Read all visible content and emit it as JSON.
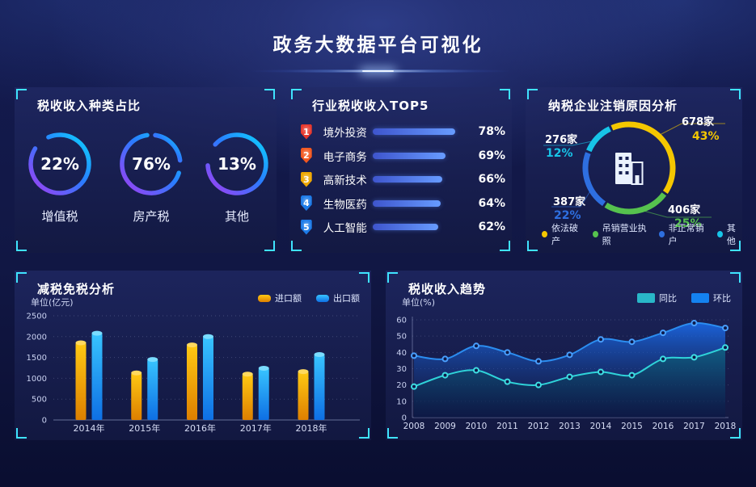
{
  "header": {
    "title": "政务大数据平台可视化"
  },
  "panels": {
    "tax_types": {
      "title": "税收收入种类占比"
    },
    "industry_top5": {
      "title": "行业税收收入TOP5"
    },
    "deregistration": {
      "title": "纳税企业注销原因分析"
    },
    "tax_reduction": {
      "title": "减税免税分析",
      "unit": "单位(亿元)"
    },
    "revenue_trend": {
      "title": "税收收入趋势",
      "unit": "单位(%)"
    }
  },
  "colors": {
    "accent_cyan": "#3fe3ff",
    "gauge_gradient": [
      "#a43cf2",
      "#2a7cff",
      "#0bd7ff"
    ],
    "top5_bar": [
      "#3e55cd",
      "#679bff"
    ],
    "gold": "#f0b400",
    "blue": "#1482f0",
    "teal": "#29b7c8"
  },
  "chart_data": [
    {
      "id": "tax_types",
      "type": "pie",
      "variant": "gauge-rings",
      "title": "税收收入种类占比",
      "items": [
        {
          "label": "增值税",
          "value": 22,
          "value_label": "22%"
        },
        {
          "label": "房产税",
          "value": 76,
          "value_label": "76%"
        },
        {
          "label": "其他",
          "value": 13,
          "value_label": "13%"
        }
      ]
    },
    {
      "id": "industry_top5",
      "type": "bar",
      "orientation": "horizontal",
      "title": "行业税收收入TOP5",
      "categories": [
        "境外投资",
        "电子商务",
        "高新技术",
        "生物医药",
        "人工智能"
      ],
      "values": [
        78,
        69,
        66,
        64,
        62
      ],
      "value_labels": [
        "78%",
        "69%",
        "66%",
        "64%",
        "62%"
      ],
      "ranks": [
        "1",
        "2",
        "3",
        "4",
        "5"
      ],
      "rank_badge_colors": [
        "#e8382d",
        "#f2571f",
        "#efa800",
        "#1d7be8",
        "#1d7be8"
      ],
      "xlim": [
        0,
        100
      ]
    },
    {
      "id": "deregistration",
      "type": "pie",
      "donut": true,
      "title": "纳税企业注销原因分析",
      "slices": [
        {
          "label": "依法破产",
          "count": "678家",
          "pct": "43%",
          "value": 43,
          "color": "#f4c700"
        },
        {
          "label": "吊销营业执照",
          "count": "406家",
          "pct": "25%",
          "value": 25,
          "color": "#56c24e"
        },
        {
          "label": "非正常销户",
          "count": "387家",
          "pct": "22%",
          "value": 22,
          "color": "#2e6fe0"
        },
        {
          "label": "其他",
          "count": "276家",
          "pct": "12%",
          "value": 12,
          "color": "#17c4e8"
        }
      ],
      "legend_position": "bottom",
      "center_icon": "building-icon"
    },
    {
      "id": "tax_reduction",
      "type": "bar",
      "title": "减税免税分析",
      "ylabel": "单位(亿元)",
      "categories": [
        "2014年",
        "2015年",
        "2016年",
        "2017年",
        "2018年"
      ],
      "series": [
        {
          "name": "进口额",
          "color_top": "#ffc913",
          "color_bottom": "#dd7f00",
          "cap": "#ffd95e",
          "values": [
            1850,
            1130,
            1800,
            1100,
            1160
          ]
        },
        {
          "name": "出口额",
          "color_top": "#38c4ff",
          "color_bottom": "#0e6fe4",
          "cap": "#7adcff",
          "values": [
            2080,
            1450,
            2000,
            1240,
            1570
          ]
        }
      ],
      "ylim": [
        0,
        2500
      ],
      "yticks": [
        2500,
        2000,
        1500,
        1000,
        500,
        0
      ],
      "grid": true,
      "legend_position": "top-right"
    },
    {
      "id": "revenue_trend",
      "type": "area",
      "title": "税收收入趋势",
      "ylabel": "单位(%)",
      "x": [
        "2008",
        "2009",
        "2010",
        "2011",
        "2012",
        "2013",
        "2014",
        "2015",
        "2016",
        "2017",
        "2018"
      ],
      "series": [
        {
          "name": "环比",
          "color": "#2b8df0",
          "swatch": "#1482f0",
          "values": [
            38,
            36,
            44,
            40,
            34.5,
            38.5,
            48,
            46.5,
            52,
            58,
            55
          ]
        },
        {
          "name": "同比",
          "color": "#2fd3d9",
          "swatch": "#29b7c8",
          "values": [
            19,
            26,
            29,
            22,
            20,
            25,
            28,
            26,
            36,
            37,
            43
          ]
        }
      ],
      "ylim": [
        0,
        60
      ],
      "yticks": [
        60,
        50,
        40,
        30,
        20,
        10,
        0
      ],
      "grid": true,
      "legend_position": "top-right"
    }
  ]
}
